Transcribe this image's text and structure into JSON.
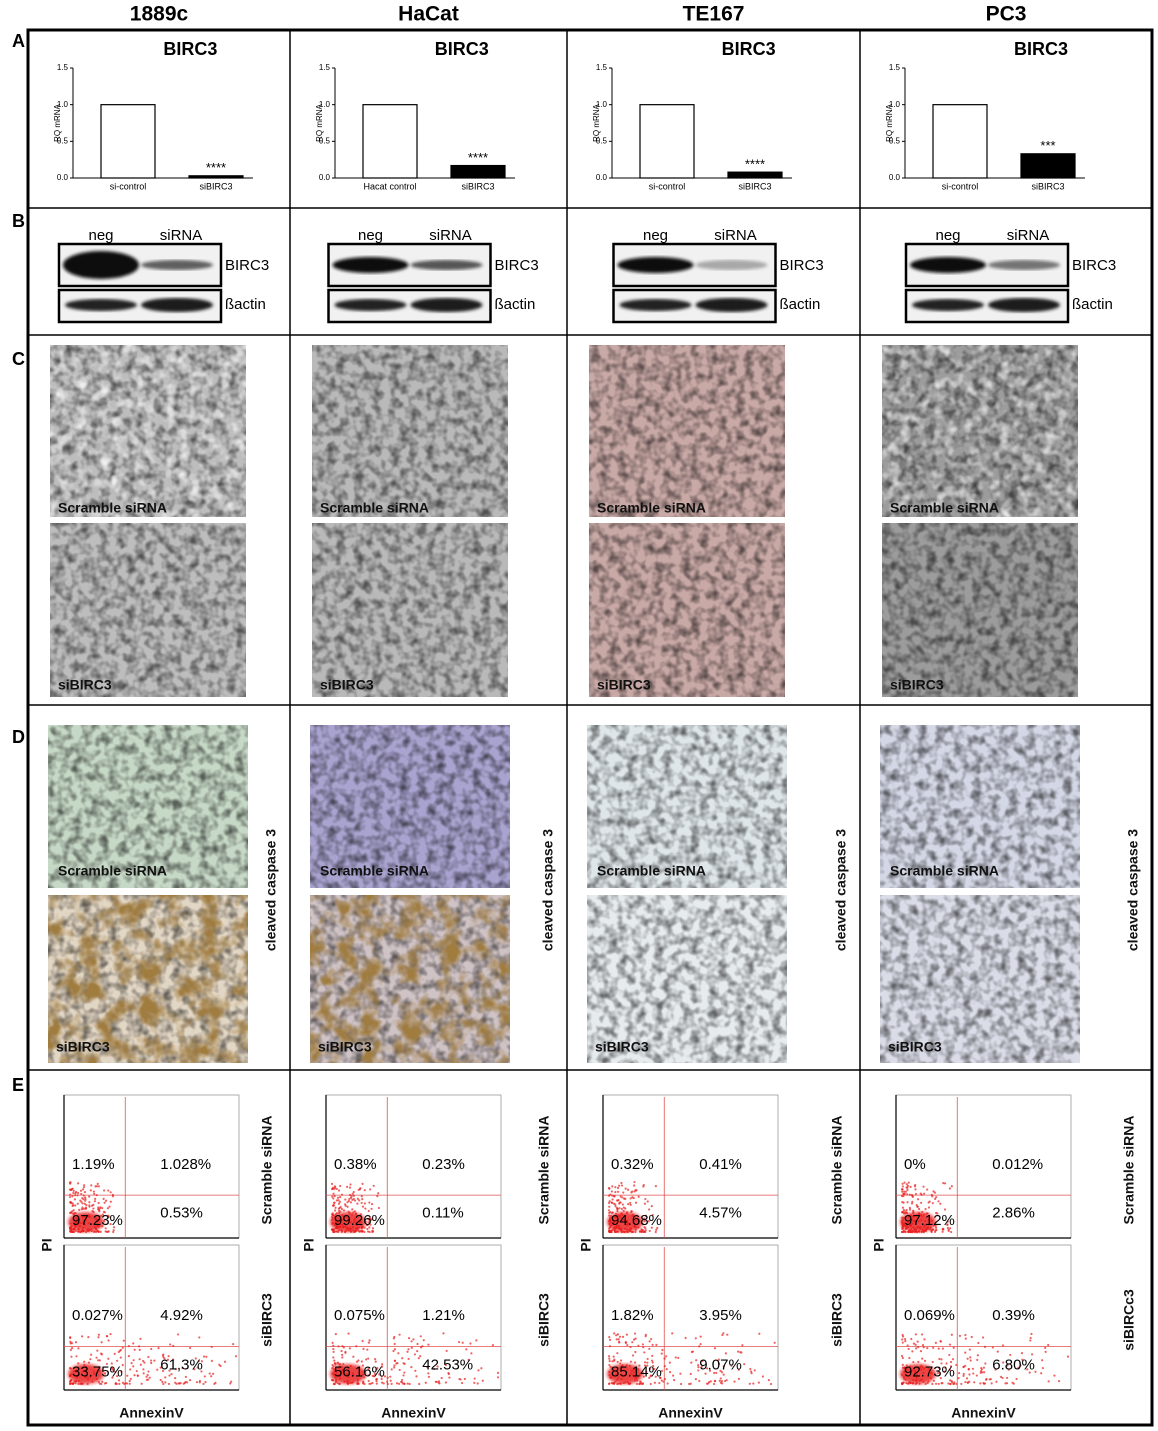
{
  "panels": [
    "A",
    "B",
    "C",
    "D",
    "E"
  ],
  "columns": [
    {
      "name": "1889c",
      "qpcr": {
        "type": "bar",
        "title": "BIRC3",
        "y_label": "RQ mRNA",
        "categories": [
          "si-control",
          "siBIRC3"
        ],
        "values": [
          1.0,
          0.03
        ],
        "colors": [
          "#ffffff",
          "#000000"
        ],
        "significance": "****",
        "ylim": [
          0,
          1.5
        ],
        "yticks": [
          {
            "value": 0,
            "label": "0.0"
          },
          0.5,
          {
            "value": 1,
            "label": "1.0"
          },
          1.5
        ]
      },
      "blot": {
        "lanes": [
          "neg",
          "siRNA"
        ],
        "proteins": [
          "BIRC3",
          "ßactin"
        ]
      },
      "morphology": {
        "top": "Scramble siRNA",
        "bottom": "siBIRC3"
      },
      "staining": {
        "top": "Scramble siRNA",
        "bottom": "siBIRC3",
        "stain": "cleaved caspase 3"
      },
      "flow": {
        "x_label": "AnnexinV",
        "y_label": "PI",
        "conditions": [
          {
            "name": "Scramble siRNA",
            "quadrants": [
              "1.19%",
              "1.028%",
              "97.23%",
              "0.53%"
            ]
          },
          {
            "name": "siBIRC3",
            "quadrants": [
              "0.027%",
              "4.92%",
              "33.75%",
              "61,3%"
            ]
          }
        ]
      }
    },
    {
      "name": "HaCat",
      "qpcr": {
        "type": "bar",
        "title": "BIRC3",
        "y_label": "RQ mRNA",
        "categories": [
          "Hacat control",
          "siBIRC3"
        ],
        "values": [
          1.0,
          0.17
        ],
        "colors": [
          "#ffffff",
          "#000000"
        ],
        "significance": "****",
        "ylim": [
          0,
          1.5
        ],
        "yticks": [
          {
            "value": 0,
            "label": "0.0"
          },
          0.5,
          {
            "value": 1,
            "label": "1.0"
          },
          1.5
        ]
      },
      "blot": {
        "lanes": [
          "neg",
          "siRNA"
        ],
        "proteins": [
          "BIRC3",
          "ßactin"
        ]
      },
      "morphology": {
        "top": "Scramble siRNA",
        "bottom": "siBIRC3"
      },
      "staining": {
        "top": "Scramble siRNA",
        "bottom": "siBIRC3",
        "stain": "cleaved caspase 3"
      },
      "flow": {
        "x_label": "AnnexinV",
        "y_label": "PI",
        "conditions": [
          {
            "name": "Scramble siRNA",
            "quadrants": [
              "0.38%",
              "0.23%",
              "99.26%",
              "0.11%"
            ]
          },
          {
            "name": "siBIRC3",
            "quadrants": [
              "0.075%",
              "1.21%",
              "56.16%",
              "42.53%"
            ]
          }
        ]
      }
    },
    {
      "name": "TE167",
      "qpcr": {
        "type": "bar",
        "title": "BIRC3",
        "y_label": "RQ mRNA",
        "categories": [
          "si-control",
          "siBIRC3"
        ],
        "values": [
          1.0,
          0.08
        ],
        "colors": [
          "#ffffff",
          "#000000"
        ],
        "significance": "****",
        "ylim": [
          0,
          1.5
        ],
        "yticks": [
          {
            "value": 0,
            "label": "0.0"
          },
          0.5,
          {
            "value": 1,
            "label": "1.0"
          },
          1.5
        ]
      },
      "blot": {
        "lanes": [
          "neg",
          "siRNA"
        ],
        "proteins": [
          "BIRC3",
          "ßactin"
        ]
      },
      "morphology": {
        "top": "Scramble siRNA",
        "bottom": "siBIRC3"
      },
      "staining": {
        "top": "Scramble siRNA",
        "bottom": "siBIRC3",
        "stain": "cleaved caspase 3"
      },
      "flow": {
        "x_label": "AnnexinV",
        "y_label": "PI",
        "conditions": [
          {
            "name": "Scramble siRNA",
            "quadrants": [
              "0.32%",
              "0.41%",
              "94.68%",
              "4.57%"
            ]
          },
          {
            "name": "siBIRC3",
            "quadrants": [
              "1.82%",
              "3.95%",
              "85.14%",
              "9.07%"
            ]
          }
        ]
      }
    },
    {
      "name": "PC3",
      "qpcr": {
        "type": "bar",
        "title": "BIRC3",
        "y_label": "RQ mRNA",
        "categories": [
          "si-control",
          "siBIRC3"
        ],
        "values": [
          1.0,
          0.33
        ],
        "colors": [
          "#ffffff",
          "#000000"
        ],
        "significance": "***",
        "ylim": [
          0,
          1.5
        ],
        "yticks": [
          {
            "value": 0,
            "label": "0.0"
          },
          0.5,
          {
            "value": 1,
            "label": "1.0"
          },
          1.5
        ]
      },
      "blot": {
        "lanes": [
          "neg",
          "siRNA"
        ],
        "proteins": [
          "BIRC3",
          "ßactin"
        ]
      },
      "morphology": {
        "top": "Scramble siRNA",
        "bottom": "siBIRC3"
      },
      "staining": {
        "top": "Scramble siRNA",
        "bottom": "siBIRC3",
        "stain": "cleaved caspase 3"
      },
      "flow": {
        "x_label": "AnnexinV",
        "y_label": "PI",
        "conditions": [
          {
            "name": "Scramble siRNA",
            "quadrants": [
              "0%",
              "0.012%",
              "97.12%",
              "2.86%"
            ]
          },
          {
            "name": "siBIRCc3",
            "quadrants": [
              "0.069%",
              "0.39%",
              "92.73%",
              "6.80%"
            ]
          }
        ]
      }
    }
  ]
}
